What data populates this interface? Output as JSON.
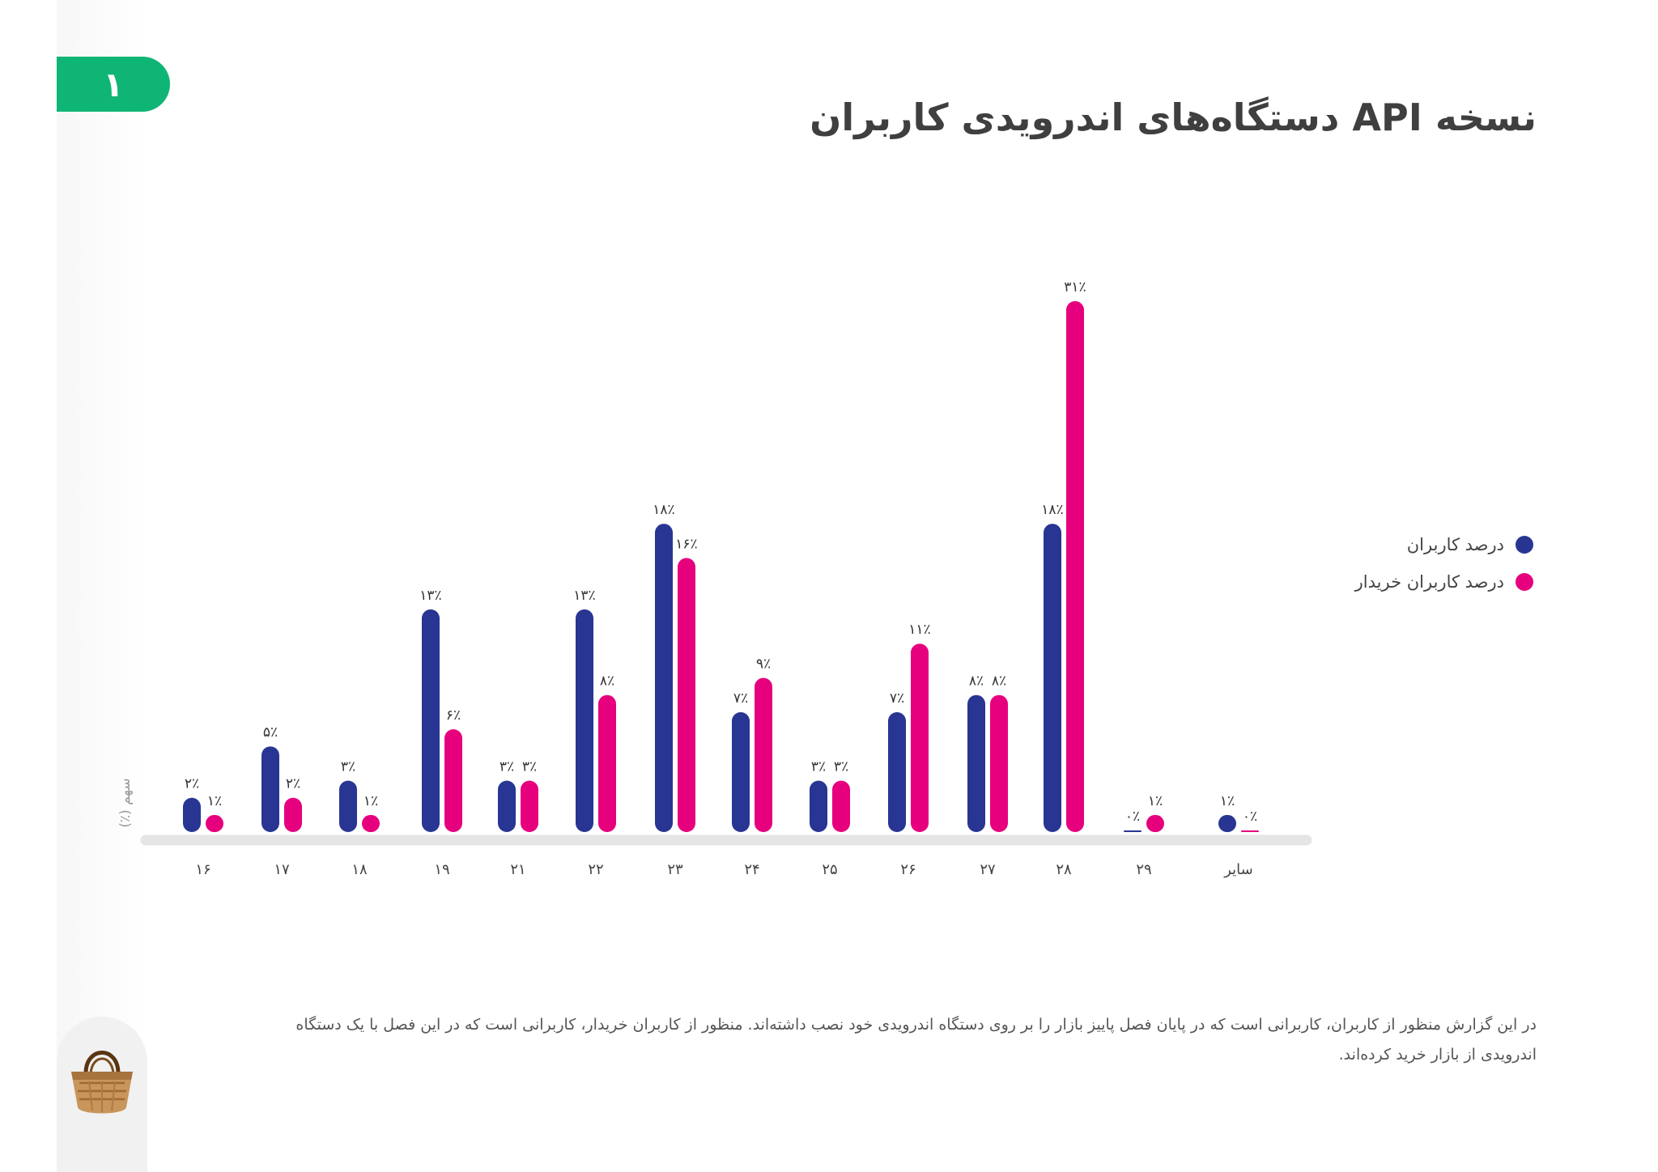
{
  "page": {
    "page_number": "۱",
    "title": "نسخه API دستگاه‌های اندرویدی کاربران",
    "footnote": "در این گزارش منظور از کاربران، کاربرانی است که در پایان فصل پاییز بازار را بر روی دستگاه اندرویدی خود نصب داشته‌اند. منظور از کاربران خریدار، کاربرانی است که در این فصل با یک دستگاه اندرویدی از بازار خرید کرده‌اند.",
    "logo_icon": "basket-icon"
  },
  "colors": {
    "users": "#283593",
    "buyers": "#e6007e",
    "accent": "#0fb574",
    "axis": "#e5e5e5"
  },
  "chart_data": {
    "type": "bar",
    "title": "نسخه API دستگاه‌های اندرویدی کاربران",
    "xlabel": "",
    "ylabel": "سهم (٪)",
    "categories": [
      "۱۶",
      "۱۷",
      "۱۸",
      "۱۹",
      "۲۱",
      "۲۲",
      "۲۳",
      "۲۴",
      "۲۵",
      "۲۶",
      "۲۷",
      "۲۸",
      "۲۹",
      "سایر"
    ],
    "series": [
      {
        "name": "درصد کاربران",
        "color": "#283593",
        "values": [
          2,
          5,
          3,
          13,
          3,
          13,
          18,
          7,
          3,
          7,
          8,
          18,
          0,
          1
        ],
        "labels": [
          "۲٪",
          "۵٪",
          "۳٪",
          "۱۳٪",
          "۳٪",
          "۱۳٪",
          "۱۸٪",
          "۷٪",
          "۳٪",
          "۷٪",
          "۸٪",
          "۱۸٪",
          "۰٪",
          "۱٪"
        ]
      },
      {
        "name": "درصد کاربران خریدار",
        "color": "#e6007e",
        "values": [
          1,
          2,
          1,
          6,
          3,
          8,
          16,
          9,
          3,
          11,
          8,
          31,
          1,
          0
        ],
        "labels": [
          "۱٪",
          "۲٪",
          "۱٪",
          "۶٪",
          "۳٪",
          "۸٪",
          "۱۶٪",
          "۹٪",
          "۳٪",
          "۱۱٪",
          "۸٪",
          "۳۱٪",
          "۱٪",
          "۰٪"
        ]
      }
    ],
    "ylim": [
      0,
      31
    ],
    "grid": false,
    "legend_position": "right"
  }
}
